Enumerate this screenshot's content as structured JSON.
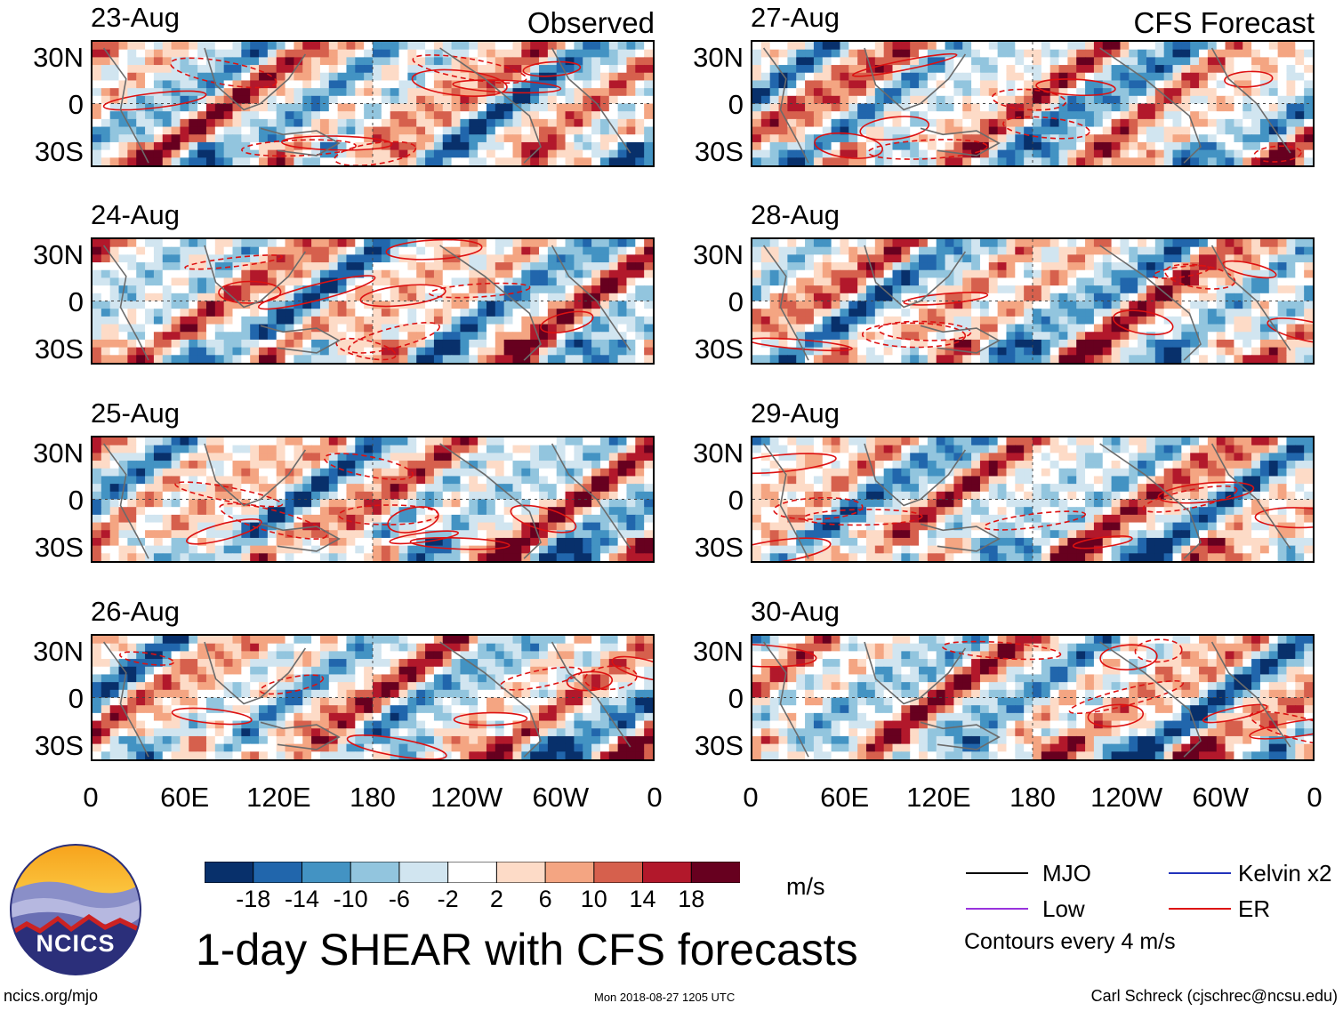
{
  "chart_data": {
    "type": "heatmap",
    "title": "1-day SHEAR with CFS forecasts",
    "columns": [
      {
        "title": "Observed",
        "dates": [
          "23-Aug",
          "24-Aug",
          "25-Aug",
          "26-Aug"
        ]
      },
      {
        "title": "CFS Forecast",
        "dates": [
          "27-Aug",
          "28-Aug",
          "29-Aug",
          "30-Aug"
        ]
      }
    ],
    "lat_ticks": [
      "30N",
      "0",
      "30S"
    ],
    "lon_ticks": [
      "0",
      "60E",
      "120E",
      "180",
      "120W",
      "60W",
      "0"
    ],
    "xlim_deg_east": [
      0,
      360
    ],
    "ylim_deg": [
      -40,
      40
    ],
    "colorbar": {
      "unit": "m/s",
      "tick_labels": [
        "-18",
        "-14",
        "-10",
        "-6",
        "-2",
        "2",
        "6",
        "10",
        "14",
        "18"
      ],
      "levels": [
        -18,
        -14,
        -10,
        -6,
        -2,
        2,
        6,
        10,
        14,
        18
      ],
      "colors": [
        "#08306b",
        "#2166ac",
        "#4393c3",
        "#92c5de",
        "#d1e5f0",
        "#ffffff",
        "#fddbc7",
        "#f4a582",
        "#d6604d",
        "#b2182b",
        "#67001f"
      ]
    },
    "contour_legend": [
      {
        "name": "MJO",
        "color": "#000000"
      },
      {
        "name": "Kelvin x2",
        "color": "#2233bb"
      },
      {
        "name": "Low",
        "color": "#9933dd"
      },
      {
        "name": "ER",
        "color": "#dd1111"
      }
    ],
    "contour_interval_text": "Contours every 4 m/s"
  },
  "footer": {
    "logo_text": "NCICS",
    "url": "ncics.org/mjo",
    "timestamp": "Mon 2018-08-27 1205 UTC",
    "credit": "Carl Schreck (cjschrec@ncsu.edu)"
  }
}
